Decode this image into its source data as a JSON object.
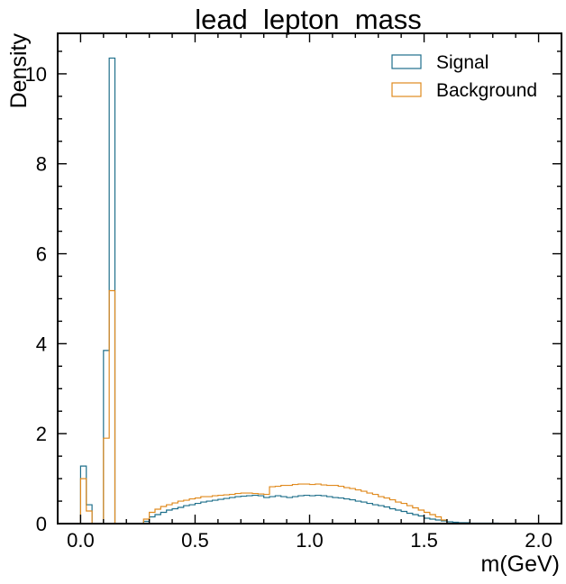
{
  "chart_data": {
    "type": "histogram",
    "title": "lead_lepton_mass",
    "xlabel": "m(GeV)",
    "ylabel": "Density",
    "xlim": [
      -0.1,
      2.1
    ],
    "ylim": [
      0,
      10.9
    ],
    "xticks": [
      0.0,
      0.5,
      1.0,
      1.5,
      2.0
    ],
    "xtick_labels": [
      "0.0",
      "0.5",
      "1.0",
      "1.5",
      "2.0"
    ],
    "yticks": [
      0,
      2,
      4,
      6,
      8,
      10
    ],
    "ytick_labels": [
      "0",
      "2",
      "4",
      "6",
      "8",
      "10"
    ],
    "bin_edges": [
      0.0,
      0.025,
      0.05,
      0.075,
      0.1,
      0.125,
      0.15,
      0.175,
      0.2,
      0.225,
      0.25,
      0.275,
      0.3,
      0.325,
      0.35,
      0.375,
      0.4,
      0.425,
      0.45,
      0.475,
      0.5,
      0.525,
      0.55,
      0.575,
      0.6,
      0.625,
      0.65,
      0.675,
      0.7,
      0.725,
      0.75,
      0.775,
      0.8,
      0.825,
      0.85,
      0.875,
      0.9,
      0.925,
      0.95,
      0.975,
      1.0,
      1.025,
      1.05,
      1.075,
      1.1,
      1.125,
      1.15,
      1.175,
      1.2,
      1.225,
      1.25,
      1.275,
      1.3,
      1.325,
      1.35,
      1.375,
      1.4,
      1.425,
      1.45,
      1.475,
      1.5,
      1.525,
      1.55,
      1.575,
      1.6,
      1.625,
      1.65,
      1.675,
      1.7,
      1.725,
      1.75,
      1.775,
      1.8,
      1.825,
      1.85
    ],
    "legend": {
      "position": "top-right"
    },
    "grid": false,
    "series": [
      {
        "name": "Signal",
        "color": "#1f6f8b",
        "values": [
          1.28,
          0.42,
          0.0,
          0.0,
          3.85,
          10.35,
          0.0,
          0.0,
          0.0,
          0.0,
          0.0,
          0.05,
          0.15,
          0.2,
          0.25,
          0.3,
          0.33,
          0.36,
          0.4,
          0.42,
          0.45,
          0.48,
          0.5,
          0.52,
          0.54,
          0.56,
          0.58,
          0.6,
          0.61,
          0.62,
          0.63,
          0.62,
          0.58,
          0.6,
          0.62,
          0.6,
          0.58,
          0.6,
          0.62,
          0.63,
          0.62,
          0.63,
          0.62,
          0.6,
          0.58,
          0.57,
          0.55,
          0.53,
          0.5,
          0.48,
          0.45,
          0.42,
          0.4,
          0.37,
          0.33,
          0.3,
          0.27,
          0.23,
          0.2,
          0.17,
          0.12,
          0.1,
          0.08,
          0.06,
          0.04,
          0.03,
          0.02,
          0.02,
          0.01,
          0.01,
          0.01,
          0.01,
          0.01,
          0.0
        ]
      },
      {
        "name": "Background",
        "color": "#e08a1e",
        "values": [
          1.0,
          0.28,
          0.0,
          0.0,
          1.9,
          5.18,
          0.0,
          0.0,
          0.0,
          0.0,
          0.0,
          0.1,
          0.25,
          0.32,
          0.38,
          0.42,
          0.46,
          0.5,
          0.52,
          0.55,
          0.57,
          0.6,
          0.6,
          0.62,
          0.63,
          0.64,
          0.65,
          0.67,
          0.68,
          0.68,
          0.67,
          0.66,
          0.65,
          0.82,
          0.83,
          0.85,
          0.85,
          0.87,
          0.88,
          0.88,
          0.87,
          0.88,
          0.86,
          0.85,
          0.85,
          0.83,
          0.8,
          0.78,
          0.75,
          0.72,
          0.68,
          0.65,
          0.6,
          0.57,
          0.53,
          0.48,
          0.45,
          0.4,
          0.35,
          0.3,
          0.25,
          0.2,
          0.15,
          0.08,
          0.0,
          0.0,
          0.0,
          0.0,
          0.0,
          0.0,
          0.0,
          0.0,
          0.0,
          0.0
        ]
      }
    ]
  }
}
